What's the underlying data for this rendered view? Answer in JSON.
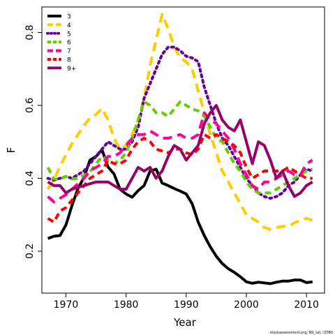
{
  "chart_data": {
    "type": "line",
    "title": "",
    "xlabel": "Year",
    "ylabel": "F",
    "xlim": [
      1966,
      2013
    ],
    "ylim": [
      0.085,
      0.87
    ],
    "xticks": [
      1970,
      1980,
      1990,
      2000,
      2010
    ],
    "yticks": [
      0.2,
      0.4,
      0.6,
      0.8
    ],
    "grid": false,
    "legend_position": "top-left",
    "x": [
      1967,
      1968,
      1969,
      1970,
      1971,
      1972,
      1973,
      1974,
      1975,
      1976,
      1977,
      1978,
      1979,
      1980,
      1981,
      1982,
      1983,
      1984,
      1985,
      1986,
      1987,
      1988,
      1989,
      1990,
      1991,
      1992,
      1993,
      1994,
      1995,
      1996,
      1997,
      1998,
      1999,
      2000,
      2001,
      2002,
      2003,
      2004,
      2005,
      2006,
      2007,
      2008,
      2009,
      2010,
      2011
    ],
    "series": [
      {
        "name": "3",
        "color": "#000000",
        "dash": "solid",
        "values": [
          0.235,
          0.241,
          0.243,
          0.272,
          0.325,
          0.372,
          0.402,
          0.45,
          0.46,
          0.478,
          0.431,
          0.412,
          0.37,
          0.357,
          0.348,
          0.366,
          0.38,
          0.42,
          0.425,
          0.387,
          0.38,
          0.372,
          0.365,
          0.357,
          0.33,
          0.28,
          0.243,
          0.212,
          0.186,
          0.166,
          0.152,
          0.142,
          0.13,
          0.116,
          0.112,
          0.115,
          0.113,
          0.111,
          0.115,
          0.118,
          0.118,
          0.121,
          0.121,
          0.114,
          0.116
        ]
      },
      {
        "name": "4",
        "color": "#ffcc00",
        "dash": "long",
        "values": [
          0.37,
          0.395,
          0.432,
          0.465,
          0.495,
          0.52,
          0.545,
          0.565,
          0.575,
          0.592,
          0.56,
          0.51,
          0.48,
          0.49,
          0.52,
          0.56,
          0.62,
          0.71,
          0.78,
          0.85,
          0.81,
          0.76,
          0.73,
          0.72,
          0.7,
          0.64,
          0.58,
          0.52,
          0.47,
          0.42,
          0.39,
          0.36,
          0.33,
          0.3,
          0.29,
          0.28,
          0.265,
          0.26,
          0.265,
          0.268,
          0.268,
          0.278,
          0.285,
          0.29,
          0.285
        ]
      },
      {
        "name": "5",
        "color": "#660099",
        "dash": "dot",
        "values": [
          0.4,
          0.395,
          0.4,
          0.405,
          0.4,
          0.41,
          0.42,
          0.44,
          0.46,
          0.48,
          0.5,
          0.49,
          0.48,
          0.48,
          0.5,
          0.54,
          0.62,
          0.66,
          0.7,
          0.74,
          0.76,
          0.76,
          0.75,
          0.735,
          0.73,
          0.72,
          0.65,
          0.6,
          0.55,
          0.51,
          0.49,
          0.46,
          0.43,
          0.4,
          0.38,
          0.36,
          0.35,
          0.345,
          0.35,
          0.36,
          0.38,
          0.39,
          0.41,
          0.425,
          0.42
        ]
      },
      {
        "name": "6",
        "color": "#66cc00",
        "dash": "medium",
        "values": [
          0.43,
          0.398,
          0.398,
          0.405,
          0.398,
          0.4,
          0.408,
          0.418,
          0.44,
          0.46,
          0.45,
          0.44,
          0.45,
          0.47,
          0.51,
          0.56,
          0.61,
          0.6,
          0.58,
          0.58,
          0.57,
          0.59,
          0.61,
          0.6,
          0.59,
          0.585,
          0.57,
          0.54,
          0.51,
          0.5,
          0.47,
          0.44,
          0.42,
          0.39,
          0.37,
          0.36,
          0.36,
          0.36,
          0.37,
          0.38,
          0.39,
          0.4,
          0.41,
          0.42,
          0.425
        ]
      },
      {
        "name": "7",
        "color": "#ff0099",
        "dash": "long",
        "values": [
          0.35,
          0.335,
          0.345,
          0.355,
          0.37,
          0.385,
          0.4,
          0.42,
          0.43,
          0.44,
          0.46,
          0.46,
          0.47,
          0.49,
          0.51,
          0.52,
          0.52,
          0.53,
          0.52,
          0.51,
          0.51,
          0.515,
          0.52,
          0.51,
          0.51,
          0.52,
          0.58,
          0.56,
          0.55,
          0.53,
          0.51,
          0.48,
          0.44,
          0.41,
          0.38,
          0.37,
          0.39,
          0.39,
          0.4,
          0.41,
          0.42,
          0.41,
          0.41,
          0.44,
          0.45
        ]
      },
      {
        "name": "8",
        "color": "#ff0000",
        "dash": "medium",
        "values": [
          0.29,
          0.28,
          0.31,
          0.32,
          0.34,
          0.36,
          0.38,
          0.4,
          0.41,
          0.42,
          0.45,
          0.44,
          0.44,
          0.45,
          0.48,
          0.5,
          0.51,
          0.5,
          0.48,
          0.475,
          0.47,
          0.48,
          0.48,
          0.47,
          0.465,
          0.48,
          0.52,
          0.51,
          0.52,
          0.51,
          0.5,
          0.49,
          0.47,
          0.43,
          0.4,
          0.41,
          0.42,
          0.42,
          0.42,
          0.42,
          0.43,
          0.42,
          0.41,
          0.4,
          0.4
        ]
      },
      {
        "name": "9+",
        "color": "#990066",
        "dash": "solid",
        "values": [
          0.39,
          0.38,
          0.38,
          0.36,
          0.37,
          0.375,
          0.38,
          0.385,
          0.39,
          0.39,
          0.39,
          0.38,
          0.37,
          0.37,
          0.4,
          0.43,
          0.42,
          0.43,
          0.4,
          0.42,
          0.46,
          0.49,
          0.48,
          0.45,
          0.47,
          0.49,
          0.55,
          0.58,
          0.6,
          0.56,
          0.54,
          0.53,
          0.56,
          0.5,
          0.44,
          0.5,
          0.49,
          0.45,
          0.4,
          0.42,
          0.38,
          0.35,
          0.36,
          0.38,
          0.39
        ]
      }
    ]
  },
  "footer": {
    "credit": "stockassessment.org, NS_sel, r2080"
  }
}
